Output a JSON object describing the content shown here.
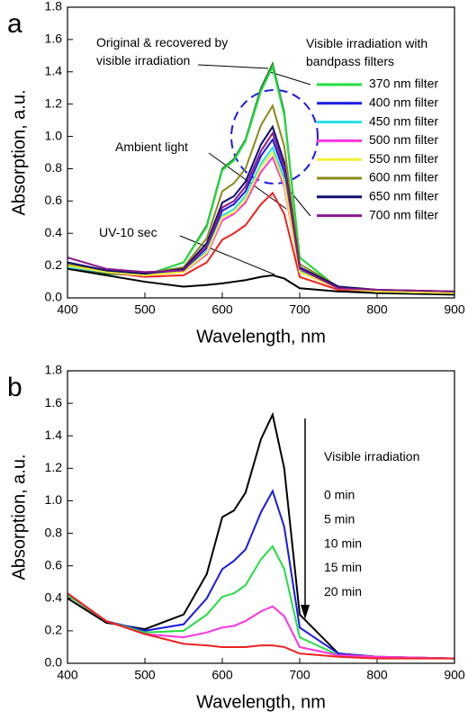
{
  "chart_data": [
    {
      "type": "line",
      "panel_label": "a",
      "ylabel": "Absorption, a.u.",
      "xlabel": "Wavelength, nm",
      "x": [
        400,
        450,
        500,
        550,
        580,
        600,
        615,
        630,
        650,
        665,
        680,
        700,
        750,
        800,
        900
      ],
      "xlim": [
        400,
        900
      ],
      "xticks": [
        400,
        500,
        600,
        700,
        800,
        900
      ],
      "ylim": [
        0,
        1.8
      ],
      "yticks": [
        {
          "value": 0,
          "label": "0.0"
        },
        0.2,
        0.4,
        0.6,
        0.8,
        {
          "value": 1,
          "label": "1.0"
        },
        1.2,
        1.4,
        1.6,
        1.8
      ],
      "legend_title": "Visible irradiation with bandpass filters",
      "series": [
        {
          "name": "370 nm filter",
          "color": "#22dd44",
          "values": [
            0.2,
            0.16,
            0.14,
            0.22,
            0.44,
            0.79,
            0.85,
            0.97,
            1.28,
            1.43,
            1.13,
            0.25,
            0.06,
            0.04,
            0.03
          ]
        },
        {
          "name": "400 nm filter",
          "color": "#1a1ae6",
          "values": [
            0.19,
            0.16,
            0.14,
            0.17,
            0.31,
            0.54,
            0.58,
            0.66,
            0.88,
            0.98,
            0.78,
            0.18,
            0.06,
            0.04,
            0.03
          ]
        },
        {
          "name": "450 nm filter",
          "color": "#22e0e8",
          "values": [
            0.19,
            0.16,
            0.14,
            0.16,
            0.29,
            0.51,
            0.55,
            0.63,
            0.83,
            0.93,
            0.74,
            0.17,
            0.06,
            0.04,
            0.03
          ]
        },
        {
          "name": "500 nm filter",
          "color": "#ff33dd",
          "values": [
            0.2,
            0.16,
            0.14,
            0.16,
            0.27,
            0.48,
            0.52,
            0.59,
            0.78,
            0.87,
            0.69,
            0.16,
            0.06,
            0.04,
            0.03
          ]
        },
        {
          "name": "550 nm filter",
          "color": "#f2f233",
          "values": [
            0.2,
            0.16,
            0.14,
            0.16,
            0.28,
            0.5,
            0.53,
            0.61,
            0.81,
            0.9,
            0.71,
            0.16,
            0.06,
            0.04,
            0.03
          ]
        },
        {
          "name": "600 nm filter",
          "color": "#8a8a1a",
          "values": [
            0.21,
            0.17,
            0.15,
            0.19,
            0.37,
            0.66,
            0.71,
            0.8,
            1.07,
            1.19,
            0.94,
            0.21,
            0.07,
            0.05,
            0.04
          ]
        },
        {
          "name": "650 nm filter",
          "color": "#101070",
          "values": [
            0.22,
            0.17,
            0.15,
            0.18,
            0.34,
            0.59,
            0.63,
            0.72,
            0.95,
            1.06,
            0.84,
            0.19,
            0.07,
            0.05,
            0.04
          ]
        },
        {
          "name": "700 nm filter",
          "color": "#8a1a8a",
          "values": [
            0.25,
            0.18,
            0.16,
            0.17,
            0.32,
            0.56,
            0.6,
            0.69,
            0.91,
            1.02,
            0.81,
            0.18,
            0.06,
            0.05,
            0.04
          ]
        }
      ],
      "annotated_series": [
        {
          "name": "Original & recovered by visible irradiation",
          "color": "#2e7d32",
          "values": [
            0.18,
            0.15,
            0.14,
            0.22,
            0.45,
            0.8,
            0.86,
            0.98,
            1.3,
            1.45,
            1.15,
            0.25,
            0.06,
            0.04,
            0.03
          ]
        },
        {
          "name": "Ambient light",
          "color": "#ee2222",
          "values": [
            0.21,
            0.16,
            0.13,
            0.14,
            0.22,
            0.36,
            0.4,
            0.45,
            0.58,
            0.65,
            0.52,
            0.13,
            0.05,
            0.04,
            0.03
          ]
        },
        {
          "name": "UV-10 sec",
          "color": "#000000",
          "values": [
            0.18,
            0.14,
            0.1,
            0.07,
            0.08,
            0.09,
            0.1,
            0.11,
            0.13,
            0.14,
            0.12,
            0.06,
            0.04,
            0.03,
            0.02
          ]
        }
      ]
    },
    {
      "type": "line",
      "panel_label": "b",
      "ylabel": "Absorption, a.u.",
      "xlabel": "Wavelength, nm",
      "x": [
        400,
        450,
        500,
        550,
        580,
        600,
        615,
        630,
        650,
        665,
        680,
        700,
        750,
        800,
        900
      ],
      "xlim": [
        400,
        900
      ],
      "xticks": [
        400,
        500,
        600,
        700,
        800,
        900
      ],
      "ylim": [
        0,
        1.8
      ],
      "yticks": [
        {
          "value": 0,
          "label": "0.0"
        },
        0.2,
        0.4,
        0.6,
        0.8,
        {
          "value": 1,
          "label": "1.0"
        },
        1.2,
        1.4,
        1.6,
        1.8
      ],
      "legend_title": "Visible irradiation",
      "series": [
        {
          "name": "0 min",
          "color": "#000000",
          "values": [
            0.4,
            0.25,
            0.21,
            0.3,
            0.55,
            0.9,
            0.94,
            1.05,
            1.38,
            1.53,
            1.2,
            0.3,
            0.06,
            0.04,
            0.03
          ]
        },
        {
          "name": "5 min",
          "color": "#1a1ae6",
          "values": [
            0.42,
            0.26,
            0.2,
            0.24,
            0.4,
            0.58,
            0.63,
            0.7,
            0.93,
            1.06,
            0.84,
            0.22,
            0.06,
            0.04,
            0.03
          ]
        },
        {
          "name": "10 min",
          "color": "#22dd44",
          "values": [
            0.42,
            0.26,
            0.19,
            0.2,
            0.3,
            0.41,
            0.43,
            0.48,
            0.64,
            0.72,
            0.58,
            0.16,
            0.05,
            0.04,
            0.03
          ]
        },
        {
          "name": "15 min",
          "color": "#ff33dd",
          "values": [
            0.43,
            0.26,
            0.18,
            0.16,
            0.19,
            0.22,
            0.23,
            0.26,
            0.32,
            0.35,
            0.29,
            0.1,
            0.05,
            0.04,
            0.03
          ]
        },
        {
          "name": "20 min",
          "color": "#ee2222",
          "values": [
            0.43,
            0.26,
            0.18,
            0.12,
            0.11,
            0.1,
            0.1,
            0.1,
            0.11,
            0.11,
            0.1,
            0.06,
            0.04,
            0.03,
            0.03
          ]
        }
      ]
    }
  ]
}
